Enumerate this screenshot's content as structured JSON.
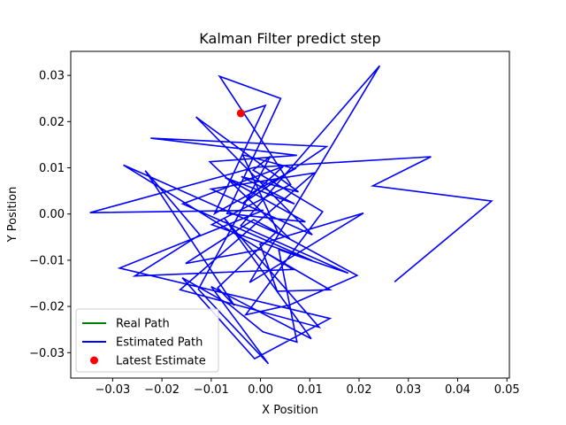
{
  "chart_data": {
    "type": "line",
    "title": "Kalman Filter predict step",
    "xlabel": "X Position",
    "ylabel": "Y Position",
    "xlim": [
      -0.0385,
      0.0505
    ],
    "ylim": [
      -0.0355,
      0.0352
    ],
    "xticks": [
      -0.03,
      -0.02,
      -0.01,
      0.0,
      0.01,
      0.02,
      0.03,
      0.04,
      0.05
    ],
    "xtick_labels": [
      "−0.03",
      "−0.02",
      "−0.01",
      "0.00",
      "0.01",
      "0.02",
      "0.03",
      "0.04",
      "0.05"
    ],
    "yticks": [
      -0.03,
      -0.02,
      -0.01,
      0.0,
      0.01,
      0.02,
      0.03
    ],
    "ytick_labels": [
      "−0.03",
      "−0.02",
      "−0.01",
      "0.00",
      "0.01",
      "0.02",
      "0.03"
    ],
    "grid": false,
    "legend_position": "lower-left",
    "series": [
      {
        "name": "Real Path",
        "kind": "line",
        "color": "#008000",
        "x": [],
        "y": []
      },
      {
        "name": "Estimated Path",
        "kind": "line",
        "color": "#0000ff",
        "x": [
          0.0272,
          0.0469,
          0.0228,
          0.0346,
          -0.0012,
          -0.0346,
          0.0006,
          -0.0286,
          0.0141,
          -0.0012,
          -0.0159,
          -0.0063,
          0.0005,
          0.0074,
          0.0037,
          0.0178,
          -0.004,
          0.0242,
          -0.0022,
          0.0209,
          -0.0001,
          0.0034,
          0.0141,
          0.0,
          -0.0152,
          -0.0014,
          0.0196,
          0.0059,
          -0.003,
          0.0126,
          -0.0015,
          0.002,
          -0.0126,
          0.0016,
          -0.01,
          0.0103,
          -0.0073,
          0.0119,
          -0.0163,
          0.0109,
          -0.01,
          0.0105,
          -0.0131,
          0.0077,
          -0.0039,
          0.0069,
          -0.0072,
          0.0091,
          -0.0068,
          0.0041,
          -0.0083,
          0.0061,
          -0.0099,
          0.0105,
          -0.0158,
          0.0046,
          -0.0036,
          0.0134,
          -0.0223,
          0.0074,
          -0.0103,
          0.006,
          -0.0278,
          0.0066,
          -0.0255,
          -0.0123,
          -0.0234,
          -0.0053,
          -0.0087,
          0.0034,
          -0.0036,
          0.007,
          -0.0093,
          0.001,
          -0.004
        ],
        "y": [
          -0.0147,
          0.0028,
          0.0061,
          0.0124,
          0.0101,
          0.0003,
          0.0008,
          -0.0117,
          -0.0226,
          -0.0313,
          -0.0138,
          -0.0196,
          -0.0255,
          -0.0277,
          -0.0077,
          -0.0128,
          -0.0025,
          0.0321,
          -0.0148,
          0.0002,
          -0.0065,
          -0.0167,
          -0.0164,
          -0.0077,
          -0.0107,
          -0.0012,
          -0.0133,
          -0.0197,
          -0.0218,
          0.0005,
          0.0095,
          0.0125,
          -0.0163,
          -0.0324,
          -0.0157,
          -0.027,
          -0.001,
          -0.0245,
          -0.0164,
          0.0089,
          0.0054,
          -0.0045,
          0.021,
          0.0048,
          0.0081,
          0.0022,
          0.0079,
          -0.0017,
          0.0001,
          0.025,
          0.0298,
          0.0064,
          -0.0023,
          -0.0101,
          0.0022,
          0.0103,
          0.0023,
          0.0146,
          0.0164,
          0.0127,
          0.0113,
          -0.0054,
          0.0106,
          -0.012,
          -0.0134,
          -0.0045,
          0.0094,
          -0.0198,
          -0.016,
          -0.0037,
          0.0128,
          0.0098,
          0.0001,
          0.0235,
          0.0218
        ]
      },
      {
        "name": "Latest Estimate",
        "kind": "scatter",
        "color": "#ff0000",
        "x": [
          -0.004
        ],
        "y": [
          0.0218
        ]
      }
    ]
  }
}
